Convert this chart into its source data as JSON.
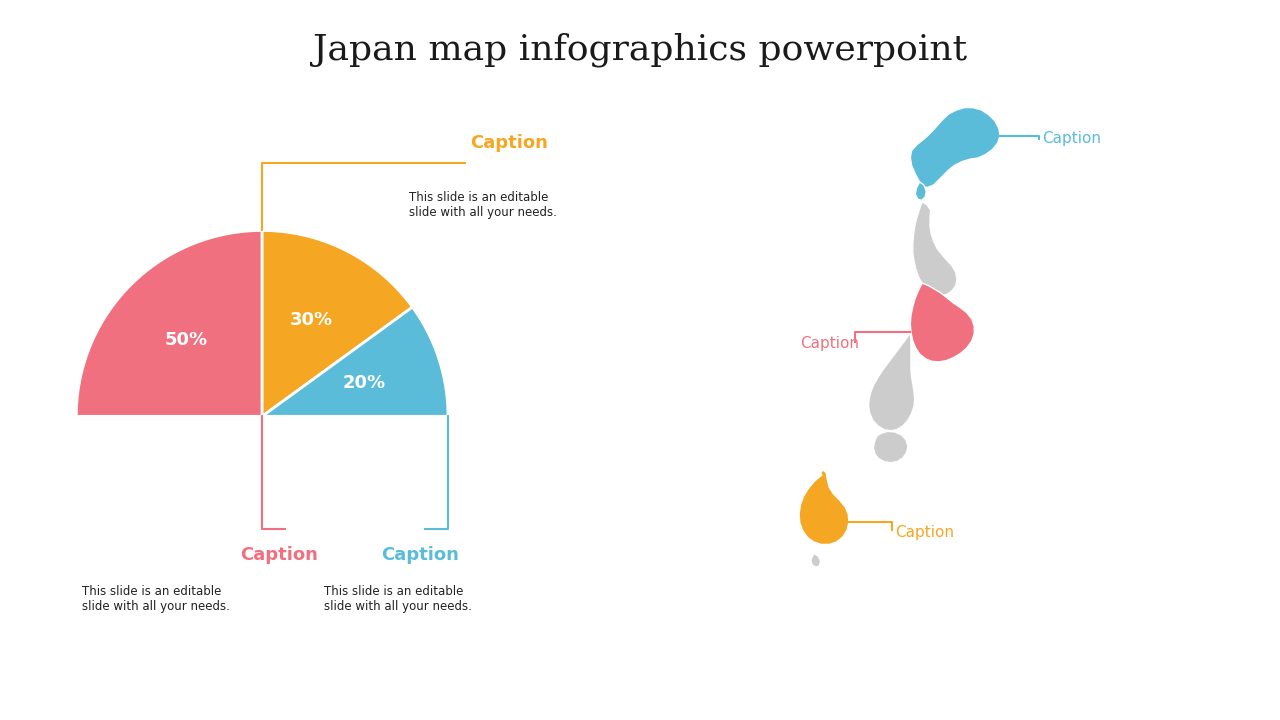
{
  "title": "Japan map infographics powerpoint",
  "title_fontsize": 26,
  "title_color": "#1a1a1a",
  "background_color": "#ffffff",
  "pie_values": [
    50,
    30,
    20
  ],
  "pie_colors": [
    "#f07080",
    "#f5a623",
    "#5abcd8"
  ],
  "pie_labels": [
    "50%",
    "30%",
    "20%"
  ],
  "captions": [
    {
      "label": "Caption",
      "color": "#f07080",
      "desc": "This slide is an editable\nslide with all your needs.",
      "desc_color": "#222222"
    },
    {
      "label": "Caption",
      "color": "#f5a623",
      "desc": "This slide is an editable\nslide with all your needs.",
      "desc_color": "#222222"
    },
    {
      "label": "Caption",
      "color": "#5abcd8",
      "desc": "This slide is an editable\nslide with all your needs.",
      "desc_color": "#222222"
    }
  ],
  "map_caption_teal": {
    "label": "Caption",
    "color": "#5abcd8"
  },
  "map_caption_pink": {
    "label": "Caption",
    "color": "#f07080"
  },
  "map_caption_gold": {
    "label": "Caption",
    "color": "#f5a623"
  },
  "region_colors": {
    "hokkaido": "#5abcd8",
    "kanto": "#f07080",
    "kyushu": "#f5a623",
    "other": "#cccccc"
  }
}
